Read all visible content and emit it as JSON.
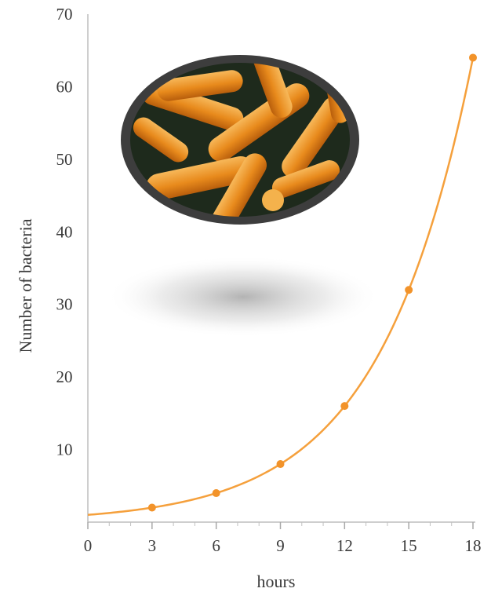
{
  "chart_data": {
    "type": "line",
    "title": "",
    "xlabel": "hours",
    "ylabel": "Number of bacteria",
    "x": [
      0,
      3,
      6,
      9,
      12,
      15,
      18
    ],
    "series": [
      {
        "values": [
          1,
          2,
          4,
          8,
          16,
          32,
          64
        ]
      }
    ],
    "xlim": [
      0,
      18
    ],
    "ylim": [
      0,
      70
    ],
    "x_ticks": [
      "0",
      "3",
      "6",
      "9",
      "12",
      "15",
      "18"
    ],
    "y_ticks": [
      "10",
      "20",
      "30",
      "40",
      "50",
      "60",
      "70"
    ],
    "line_color": "#f5a03c",
    "marker_color": "#f2932a",
    "grid": false,
    "decoration": "bacteria-micrograph"
  }
}
